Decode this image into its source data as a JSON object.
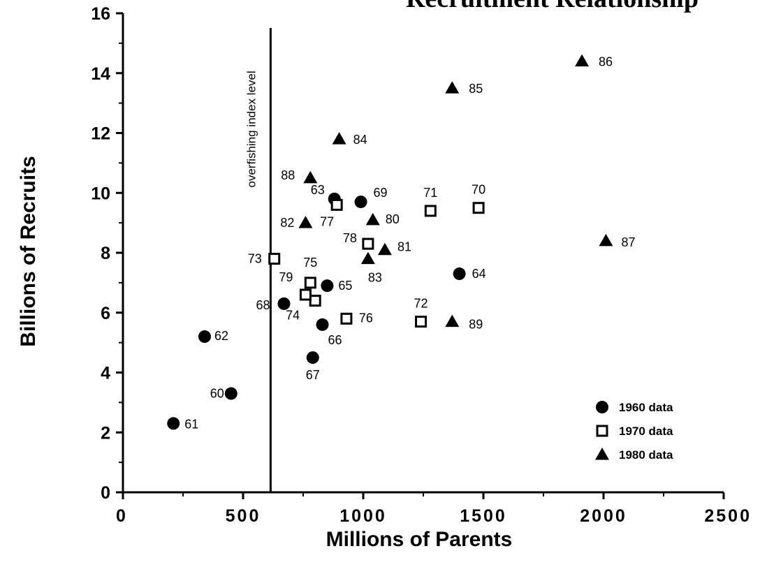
{
  "chart_data": {
    "type": "scatter",
    "title": "Recruitment Relationship",
    "xlabel": "Millions of Parents",
    "ylabel": "Billions of Recruits",
    "xlim": [
      0,
      2500
    ],
    "ylim": [
      0,
      16
    ],
    "x_ticks": [
      0,
      500,
      1000,
      1500,
      2000,
      2500
    ],
    "y_ticks": [
      0,
      2,
      4,
      6,
      8,
      10,
      12,
      14,
      16
    ],
    "grid": false,
    "legend_position": "bottom-right",
    "reference_line": {
      "x": 600,
      "label": "overfishing index level"
    },
    "series": [
      {
        "name": "1960 data",
        "marker": "filled-circle",
        "points": [
          {
            "x": 450,
            "y": 3.3,
            "label": "60"
          },
          {
            "x": 210,
            "y": 2.3,
            "label": "61"
          },
          {
            "x": 340,
            "y": 5.2,
            "label": "62"
          },
          {
            "x": 880,
            "y": 9.8,
            "label": "63"
          },
          {
            "x": 1400,
            "y": 7.3,
            "label": "64"
          },
          {
            "x": 850,
            "y": 6.9,
            "label": "65"
          },
          {
            "x": 830,
            "y": 5.6,
            "label": "66"
          },
          {
            "x": 790,
            "y": 4.5,
            "label": "67"
          },
          {
            "x": 670,
            "y": 6.3,
            "label": "68"
          },
          {
            "x": 990,
            "y": 9.7,
            "label": "69"
          }
        ]
      },
      {
        "name": "1970 data",
        "marker": "open-square",
        "points": [
          {
            "x": 1480,
            "y": 9.5,
            "label": "70"
          },
          {
            "x": 1280,
            "y": 9.4,
            "label": "71"
          },
          {
            "x": 1240,
            "y": 5.7,
            "label": "72"
          },
          {
            "x": 630,
            "y": 7.8,
            "label": "73"
          },
          {
            "x": 800,
            "y": 6.4,
            "label": "74"
          },
          {
            "x": 780,
            "y": 7.0,
            "label": "75"
          },
          {
            "x": 930,
            "y": 5.8,
            "label": "76"
          },
          {
            "x": 890,
            "y": 9.6,
            "label": "77"
          },
          {
            "x": 1020,
            "y": 8.3,
            "label": "78"
          },
          {
            "x": 760,
            "y": 6.6,
            "label": "79"
          }
        ]
      },
      {
        "name": "1980 data",
        "marker": "filled-triangle",
        "points": [
          {
            "x": 1040,
            "y": 9.1,
            "label": "80"
          },
          {
            "x": 1090,
            "y": 8.1,
            "label": "81"
          },
          {
            "x": 760,
            "y": 9.0,
            "label": "82"
          },
          {
            "x": 1020,
            "y": 7.8,
            "label": "83"
          },
          {
            "x": 900,
            "y": 11.8,
            "label": "84"
          },
          {
            "x": 1370,
            "y": 13.5,
            "label": "85"
          },
          {
            "x": 1910,
            "y": 14.4,
            "label": "86"
          },
          {
            "x": 2010,
            "y": 8.4,
            "label": "87"
          },
          {
            "x": 780,
            "y": 10.5,
            "label": "88"
          },
          {
            "x": 1370,
            "y": 5.7,
            "label": "89"
          }
        ]
      }
    ]
  }
}
